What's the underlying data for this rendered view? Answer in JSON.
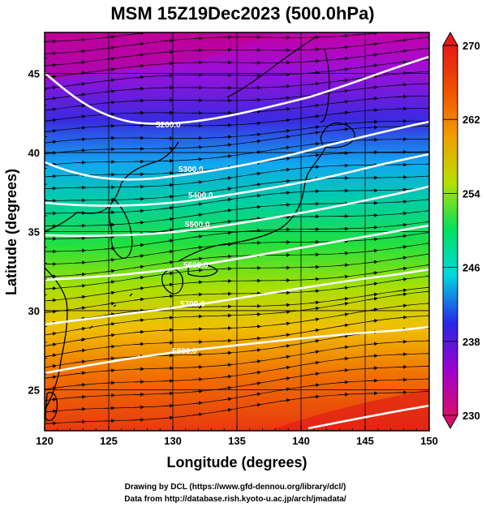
{
  "title": "MSM 15Z19Dec2023 (500.0hPa)",
  "xlabel": "Longitude (degrees)",
  "ylabel": "Latitude  (degrees)",
  "credits": {
    "line1": "Drawing by DCL (https://www.gfd-dennou.org/library/dcl/)",
    "line2": "Data from http://database.rish.kyoto-u.ac.jp/arch/jmadata/"
  },
  "map": {
    "lon_range": [
      120,
      150
    ],
    "lat_range": [
      22.4,
      47.6
    ],
    "x_ticks": [
      120,
      125,
      130,
      135,
      140,
      145,
      150
    ],
    "y_ticks": [
      25,
      30,
      35,
      40,
      45
    ],
    "x_tick_labels": [
      "120",
      "125",
      "130",
      "135",
      "140",
      "145",
      "150"
    ],
    "y_tick_labels": [
      "25",
      "30",
      "35",
      "40",
      "45"
    ]
  },
  "colorbar": {
    "min": 230,
    "max": 270,
    "labels": [
      "270",
      "262",
      "254",
      "246",
      "238",
      "230"
    ],
    "label_values": [
      270,
      262,
      254,
      246,
      238,
      230
    ],
    "colors": [
      "#d80f6a",
      "#a000d0",
      "#2828e8",
      "#00d8e0",
      "#00e060",
      "#b8e000",
      "#f0a000",
      "#f05000",
      "#e81818"
    ]
  },
  "contours": {
    "labels": [
      "5200.0",
      "5300.0",
      "5400.0",
      "5500.0",
      "5600.0",
      "5700.0",
      "5800.0"
    ]
  }
}
